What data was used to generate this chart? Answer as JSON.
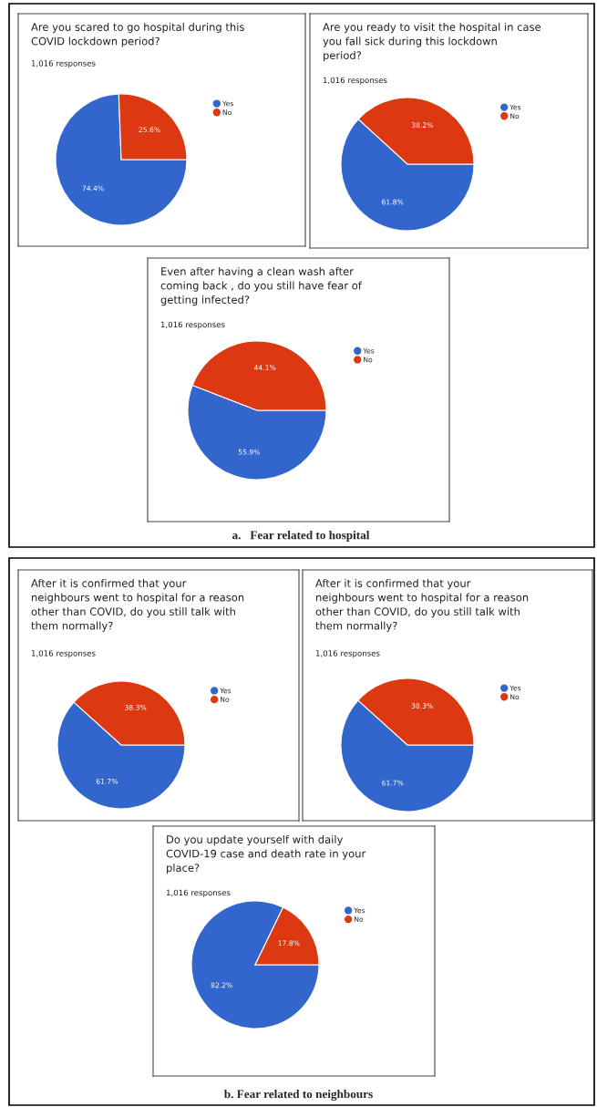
{
  "chart_data": [
    {
      "type": "pie",
      "title": "Are you scared to go hospital during this\nCOVID lockdown period?",
      "subtitle": "1,016 responses",
      "categories": [
        "Yes",
        "No"
      ],
      "values": [
        74.4,
        25.6
      ],
      "value_labels": [
        "74.4%",
        "25.6%"
      ],
      "colors": [
        "#3366cc",
        "#dc3912"
      ],
      "legend": "right"
    },
    {
      "type": "pie",
      "title": "Are you ready to visit the hospital in case\nyou fall sick during this lockdown\nperiod?",
      "subtitle": "1,016 responses",
      "categories": [
        "Yes",
        "No"
      ],
      "values": [
        61.8,
        38.2
      ],
      "value_labels": [
        "61.8%",
        "38.2%"
      ],
      "colors": [
        "#3366cc",
        "#dc3912"
      ],
      "legend": "right"
    },
    {
      "type": "pie",
      "title": "Even after having a clean wash after\ncoming back , do you still have fear of\ngetting infected?",
      "subtitle": "1,016 responses",
      "categories": [
        "Yes",
        "No"
      ],
      "values": [
        55.9,
        44.1
      ],
      "value_labels": [
        "55.9%",
        "44.1%"
      ],
      "colors": [
        "#3366cc",
        "#dc3912"
      ],
      "legend": "right",
      "annotations": [
        "a.   Fear related to hospital"
      ]
    },
    {
      "type": "pie",
      "title": "After it is confirmed that your\nneighbours went to hospital for a reason\nother than COVID, do you still talk with\nthem normally?",
      "subtitle": "1,016 responses",
      "categories": [
        "Yes",
        "No"
      ],
      "values": [
        61.7,
        38.3
      ],
      "value_labels": [
        "61.7%",
        "38.3%"
      ],
      "colors": [
        "#3366cc",
        "#dc3912"
      ],
      "legend": "right"
    },
    {
      "type": "pie",
      "title": "After it is confirmed that your\nneighbours went to hospital for a reason\nother than COVID, do you still talk with\nthem normally?",
      "subtitle": "1,016 responses",
      "categories": [
        "Yes",
        "No"
      ],
      "values": [
        61.7,
        38.3
      ],
      "value_labels": [
        "61.7%",
        "38.3%"
      ],
      "colors": [
        "#3366cc",
        "#dc3912"
      ],
      "legend": "right"
    },
    {
      "type": "pie",
      "title": "Do you update yourself with daily\nCOVID-19 case and death rate in your\nplace?",
      "subtitle": "1,016 responses",
      "categories": [
        "Yes",
        "No"
      ],
      "values": [
        82.2,
        17.8
      ],
      "value_labels": [
        "82.2%",
        "17.8%"
      ],
      "colors": [
        "#3366cc",
        "#dc3912"
      ],
      "legend": "right",
      "annotations": [
        "b. Fear related to neighbours"
      ]
    }
  ]
}
